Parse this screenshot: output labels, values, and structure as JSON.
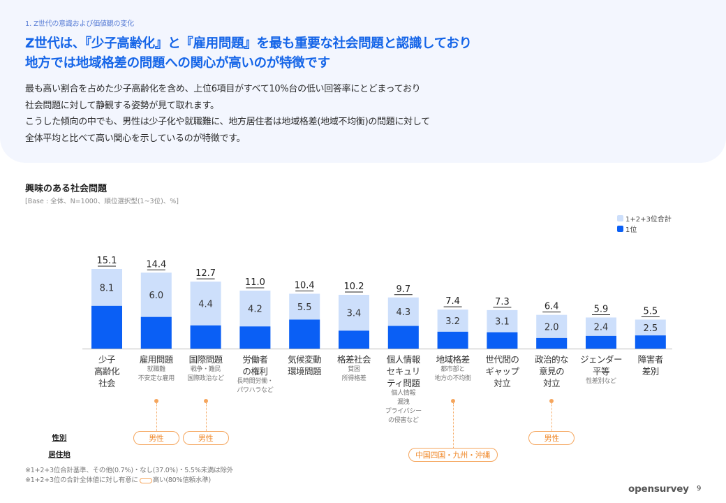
{
  "header": {
    "section_label": "1. Z世代の意識および価値観の変化",
    "headline_line1": "Z世代は、『少子高齢化』と『雇用問題』を最も重要な社会問題と認識しており",
    "headline_line2": "地方では地域格差の問題への関心が高いのが特徴です",
    "body_lines": [
      "最も高い割合を占めた少子高齢化を含め、上位6項目がすべて10%台の低い回答率にとどまっており",
      "社会問題に対して静観する姿勢が見て取れます。",
      "こうした傾向の中でも、男性は少子化や就職難に、地方居住者は地域格差(地域不均衡)の問題に対して",
      "全体平均と比べて高い関心を示しているのが特徴です。"
    ]
  },
  "chart_data": {
    "type": "bar",
    "stacked": "overlay",
    "title": "興味のある社会問題",
    "subtitle": "[Base : 全体、N=1000、順位選択型(1~3位)、%]",
    "xlabel": "",
    "ylabel": "",
    "ylim": [
      0,
      16
    ],
    "grid": false,
    "legend_position": "top-right",
    "categories": [
      {
        "label": [
          "少子",
          "高齢化",
          "社会"
        ],
        "sub": []
      },
      {
        "label": [
          "雇用問題"
        ],
        "sub": [
          "就職難",
          "不安定な雇用"
        ]
      },
      {
        "label": [
          "国際問題"
        ],
        "sub": [
          "戦争・難民",
          "国際政治など"
        ]
      },
      {
        "label": [
          "労働者",
          "の権利"
        ],
        "sub": [
          "長時間労働・",
          "パワハラなど"
        ]
      },
      {
        "label": [
          "気候変動",
          "環境問題"
        ],
        "sub": []
      },
      {
        "label": [
          "格差社会"
        ],
        "sub": [
          "貧困",
          "所得格差"
        ]
      },
      {
        "label": [
          "個人情報",
          "セキュリ",
          "ティ問題"
        ],
        "sub": [
          "個人情報",
          "漏洩",
          "プライバシー",
          "の侵害など"
        ]
      },
      {
        "label": [
          "地域格差"
        ],
        "sub": [
          "都市部と",
          "地方の不均衡"
        ]
      },
      {
        "label": [
          "世代間の",
          "ギャップ",
          "対立"
        ],
        "sub": []
      },
      {
        "label": [
          "政治的な",
          "意見の",
          "対立"
        ],
        "sub": []
      },
      {
        "label": [
          "ジェンダー",
          "平等"
        ],
        "sub": [
          "性差別など"
        ]
      },
      {
        "label": [
          "障害者",
          "差別"
        ],
        "sub": []
      }
    ],
    "series": [
      {
        "name": "1+2+3位合計",
        "color": "#cddffb",
        "values": [
          15.1,
          14.4,
          12.7,
          11.0,
          10.4,
          10.2,
          9.7,
          7.4,
          7.3,
          6.4,
          5.9,
          5.5
        ]
      },
      {
        "name": "1位",
        "color": "#0a5ff5",
        "values": [
          8.1,
          6.0,
          4.4,
          4.2,
          5.5,
          3.4,
          4.3,
          3.2,
          3.1,
          2.0,
          2.4,
          2.5
        ]
      }
    ],
    "total_labels": [
      "15.1",
      "14.4",
      "12.7",
      "11.0",
      "10.4",
      "10.2",
      "9.7",
      "7.4",
      "7.3",
      "6.4",
      "5.9",
      "5.5"
    ],
    "first_labels": [
      "8.1",
      "6.0",
      "4.4",
      "4.2",
      "5.5",
      "3.4",
      "4.3",
      "3.2",
      "3.1",
      "2.0",
      "2.4",
      "2.5"
    ]
  },
  "legend": {
    "items": [
      {
        "label": "1+2+3位合計",
        "color": "#cddffb"
      },
      {
        "label": "1位",
        "color": "#0a5ff5"
      }
    ]
  },
  "segments": {
    "row_labels": {
      "gender": "性別",
      "residence": "居住地"
    },
    "highlights": [
      {
        "category_index": 1,
        "row": "gender",
        "label": "男性"
      },
      {
        "category_index": 2,
        "row": "gender",
        "label": "男性"
      },
      {
        "category_index": 7,
        "row": "residence",
        "label": "中国四国・九州・沖縄"
      },
      {
        "category_index": 9,
        "row": "gender",
        "label": "男性"
      }
    ]
  },
  "footnotes": {
    "line1": "※1+2+3位合計基準、その他(0.7%)・なし(37.0%)・5.5%未満は除外",
    "line2_prefix": "※1+2+3位の合計全体値に対し有意に",
    "line2_suffix": "高い(80%信頼水準)"
  },
  "footer": {
    "brand": "opensurvey",
    "page_number": "9"
  }
}
